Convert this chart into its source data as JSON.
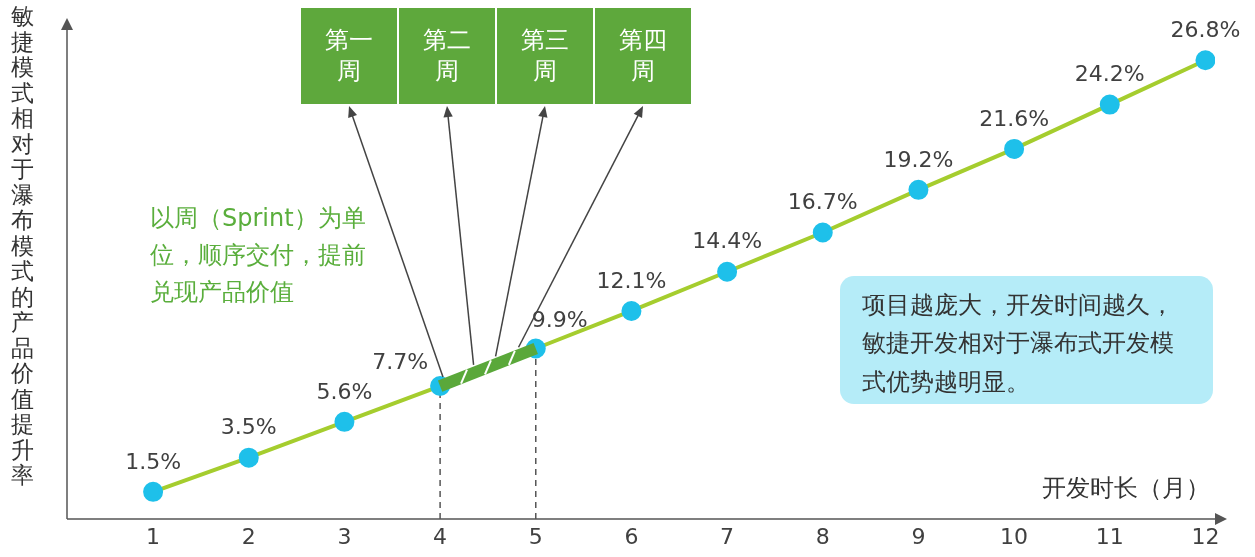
{
  "chart_data": {
    "type": "line",
    "xlabel": "开发时长（月）",
    "ylabel": "敏捷模式相对于瀑布模式的产品价值提升率",
    "x": [
      1,
      2,
      3,
      4,
      5,
      6,
      7,
      8,
      9,
      10,
      11,
      12
    ],
    "xlim": [
      0.1,
      12.1
    ],
    "xticks": [
      1,
      2,
      3,
      4,
      5,
      6,
      7,
      8,
      9,
      10,
      11,
      12
    ],
    "tick_labels": "x",
    "series": [
      {
        "color": "#a5cd2e",
        "values": [
          1.5,
          3.5,
          5.6,
          7.7,
          9.9,
          12.1,
          14.4,
          16.7,
          19.2,
          21.6,
          24.2,
          26.8
        ],
        "value_labels": [
          "1.5%",
          "3.5%",
          "5.6%",
          "7.7%",
          "9.9%",
          "12.1%",
          "14.4%",
          "16.7%",
          "19.2%",
          "21.6%",
          "24.2%",
          "26.8%"
        ]
      }
    ],
    "marker": "circle",
    "grid": false,
    "legend": false,
    "ref_lines": [
      {
        "axis": "x",
        "value": 4,
        "line_style": "dashed",
        "color": "#555555"
      },
      {
        "axis": "x",
        "value": 5,
        "line_style": "dashed",
        "color": "#555555"
      }
    ],
    "annotations": [
      "第一周",
      "第二周",
      "第三周",
      "第四周",
      "以周（Sprint）为单位，顺序交付，提前兑现产品价值",
      "项目越庞大，开发时间越久，敏捷开发相对于瀑布式开发模式优势越明显。"
    ]
  }
}
